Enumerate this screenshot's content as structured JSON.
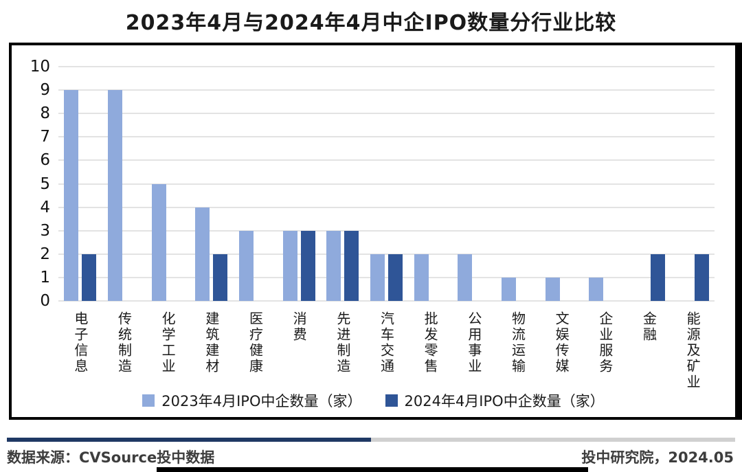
{
  "title": "2023年4月与2024年4月中企IPO数量分行业比较",
  "chart_data": {
    "type": "bar",
    "categories": [
      "电子信息",
      "传统制造",
      "化学工业",
      "建筑建材",
      "医疗健康",
      "消费",
      "先进制造",
      "汽车交通",
      "批发零售",
      "公用事业",
      "物流运输",
      "文娱传媒",
      "企业服务",
      "金融",
      "能源及矿业"
    ],
    "series": [
      {
        "name": "2023年4月IPO中企数量（家）",
        "color": "#8FAADC",
        "values": [
          9,
          9,
          5,
          4,
          3,
          3,
          3,
          2,
          2,
          2,
          1,
          1,
          1,
          0,
          0
        ]
      },
      {
        "name": "2024年4月IPO中企数量（家）",
        "color": "#2F5597",
        "values": [
          2,
          0,
          0,
          2,
          0,
          3,
          3,
          2,
          0,
          0,
          0,
          0,
          0,
          2,
          2
        ]
      }
    ],
    "title": "2023年4月与2024年4月中企IPO数量分行业比较",
    "xlabel": "",
    "ylabel": "",
    "ylim": [
      0,
      10
    ],
    "ytick_interval": 1,
    "yticks": [
      0,
      1,
      2,
      3,
      4,
      5,
      6,
      7,
      8,
      9,
      10
    ],
    "grid": true,
    "legend_position": "bottom"
  },
  "footer": {
    "source": "数据来源：CVSource投中数据",
    "credit": "投中研究院，2024.05"
  },
  "colors": {
    "series_2023": "#8FAADC",
    "series_2024": "#2F5597",
    "gridline": "#E3E3E3",
    "divider_navy": "#1F3864",
    "divider_gray": "#D0D0D0",
    "bottom_bar": "#000000",
    "chart_border": "#000000"
  }
}
